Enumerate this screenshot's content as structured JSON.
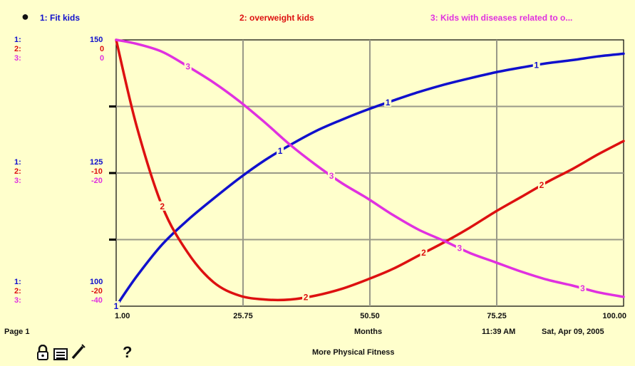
{
  "colors": {
    "series1": "#1010cc",
    "series2": "#dd1010",
    "series3": "#e030e0",
    "grid": "#999988",
    "frame": "#000000",
    "background": "#ffffcc"
  },
  "legend": [
    {
      "num": "1",
      "label": "1: Fit kids"
    },
    {
      "num": "2",
      "label": "2: overweight kids"
    },
    {
      "num": "3",
      "label": "3: Kids with diseases related to o..."
    }
  ],
  "scales": {
    "top": {
      "s1": "1:",
      "s2": "2:",
      "s3": "3:",
      "v1": "150",
      "v2": "0",
      "v3": "0"
    },
    "middle": {
      "s1": "1:",
      "s2": "2:",
      "s3": "3:",
      "v1": "125",
      "v2": "-10",
      "v3": "-20"
    },
    "bottom": {
      "s1": "1:",
      "s2": "2:",
      "s3": "3:",
      "v1": "100",
      "v2": "-20",
      "v3": "-40"
    }
  },
  "footer": {
    "page": "Page 1",
    "xlabel": "Months",
    "time": "11:39 AM",
    "date": "Sat, Apr 09, 2005",
    "title": "More Physical Fitness"
  },
  "icons": [
    "pin-icon",
    "lock-icon",
    "list-icon",
    "pencil-icon",
    "help-icon"
  ],
  "chart_data": {
    "type": "line",
    "xlabel": "Months",
    "x_ticks": [
      "1.00",
      "25.75",
      "50.50",
      "75.25",
      "100.00"
    ],
    "xlim": [
      1,
      100
    ],
    "grid": true,
    "series": [
      {
        "name": "1: Fit kids",
        "marker": "1",
        "ylim": [
          100,
          150
        ],
        "x": [
          1,
          5,
          10,
          15,
          20,
          25,
          30,
          35,
          40,
          45,
          50,
          55,
          60,
          65,
          70,
          75,
          80,
          85,
          90,
          95,
          100
        ],
        "values": [
          100,
          105.6,
          111.6,
          116.2,
          120.2,
          124,
          127.4,
          130.3,
          132.9,
          135,
          136.9,
          138.6,
          140.2,
          141.6,
          142.8,
          143.9,
          144.8,
          145.6,
          146.2,
          146.9,
          147.4
        ]
      },
      {
        "name": "2: overweight kids",
        "marker": "2",
        "ylim": [
          -20,
          0
        ],
        "x": [
          1,
          5,
          10,
          15,
          20,
          25,
          30,
          35,
          40,
          45,
          50,
          55,
          60,
          65,
          70,
          75,
          80,
          85,
          90,
          95,
          100
        ],
        "values": [
          0,
          -6.5,
          -12.5,
          -16,
          -18.2,
          -19.2,
          -19.5,
          -19.5,
          -19.2,
          -18.7,
          -18,
          -17.2,
          -16.2,
          -15.2,
          -14.1,
          -12.9,
          -11.8,
          -10.7,
          -9.7,
          -8.6,
          -7.6
        ]
      },
      {
        "name": "3: Kids with diseases related to o...",
        "marker": "3",
        "ylim": [
          -40,
          0
        ],
        "x": [
          1,
          5,
          10,
          15,
          20,
          25,
          30,
          35,
          40,
          45,
          50,
          55,
          60,
          65,
          70,
          75,
          80,
          85,
          90,
          95,
          100
        ],
        "values": [
          0,
          -0.6,
          -1.8,
          -4,
          -6.4,
          -9.2,
          -12.4,
          -15.8,
          -18.8,
          -21.5,
          -23.8,
          -26.3,
          -28.5,
          -30.2,
          -32,
          -33.4,
          -34.8,
          -36,
          -36.9,
          -37.9,
          -38.6
        ]
      }
    ]
  }
}
